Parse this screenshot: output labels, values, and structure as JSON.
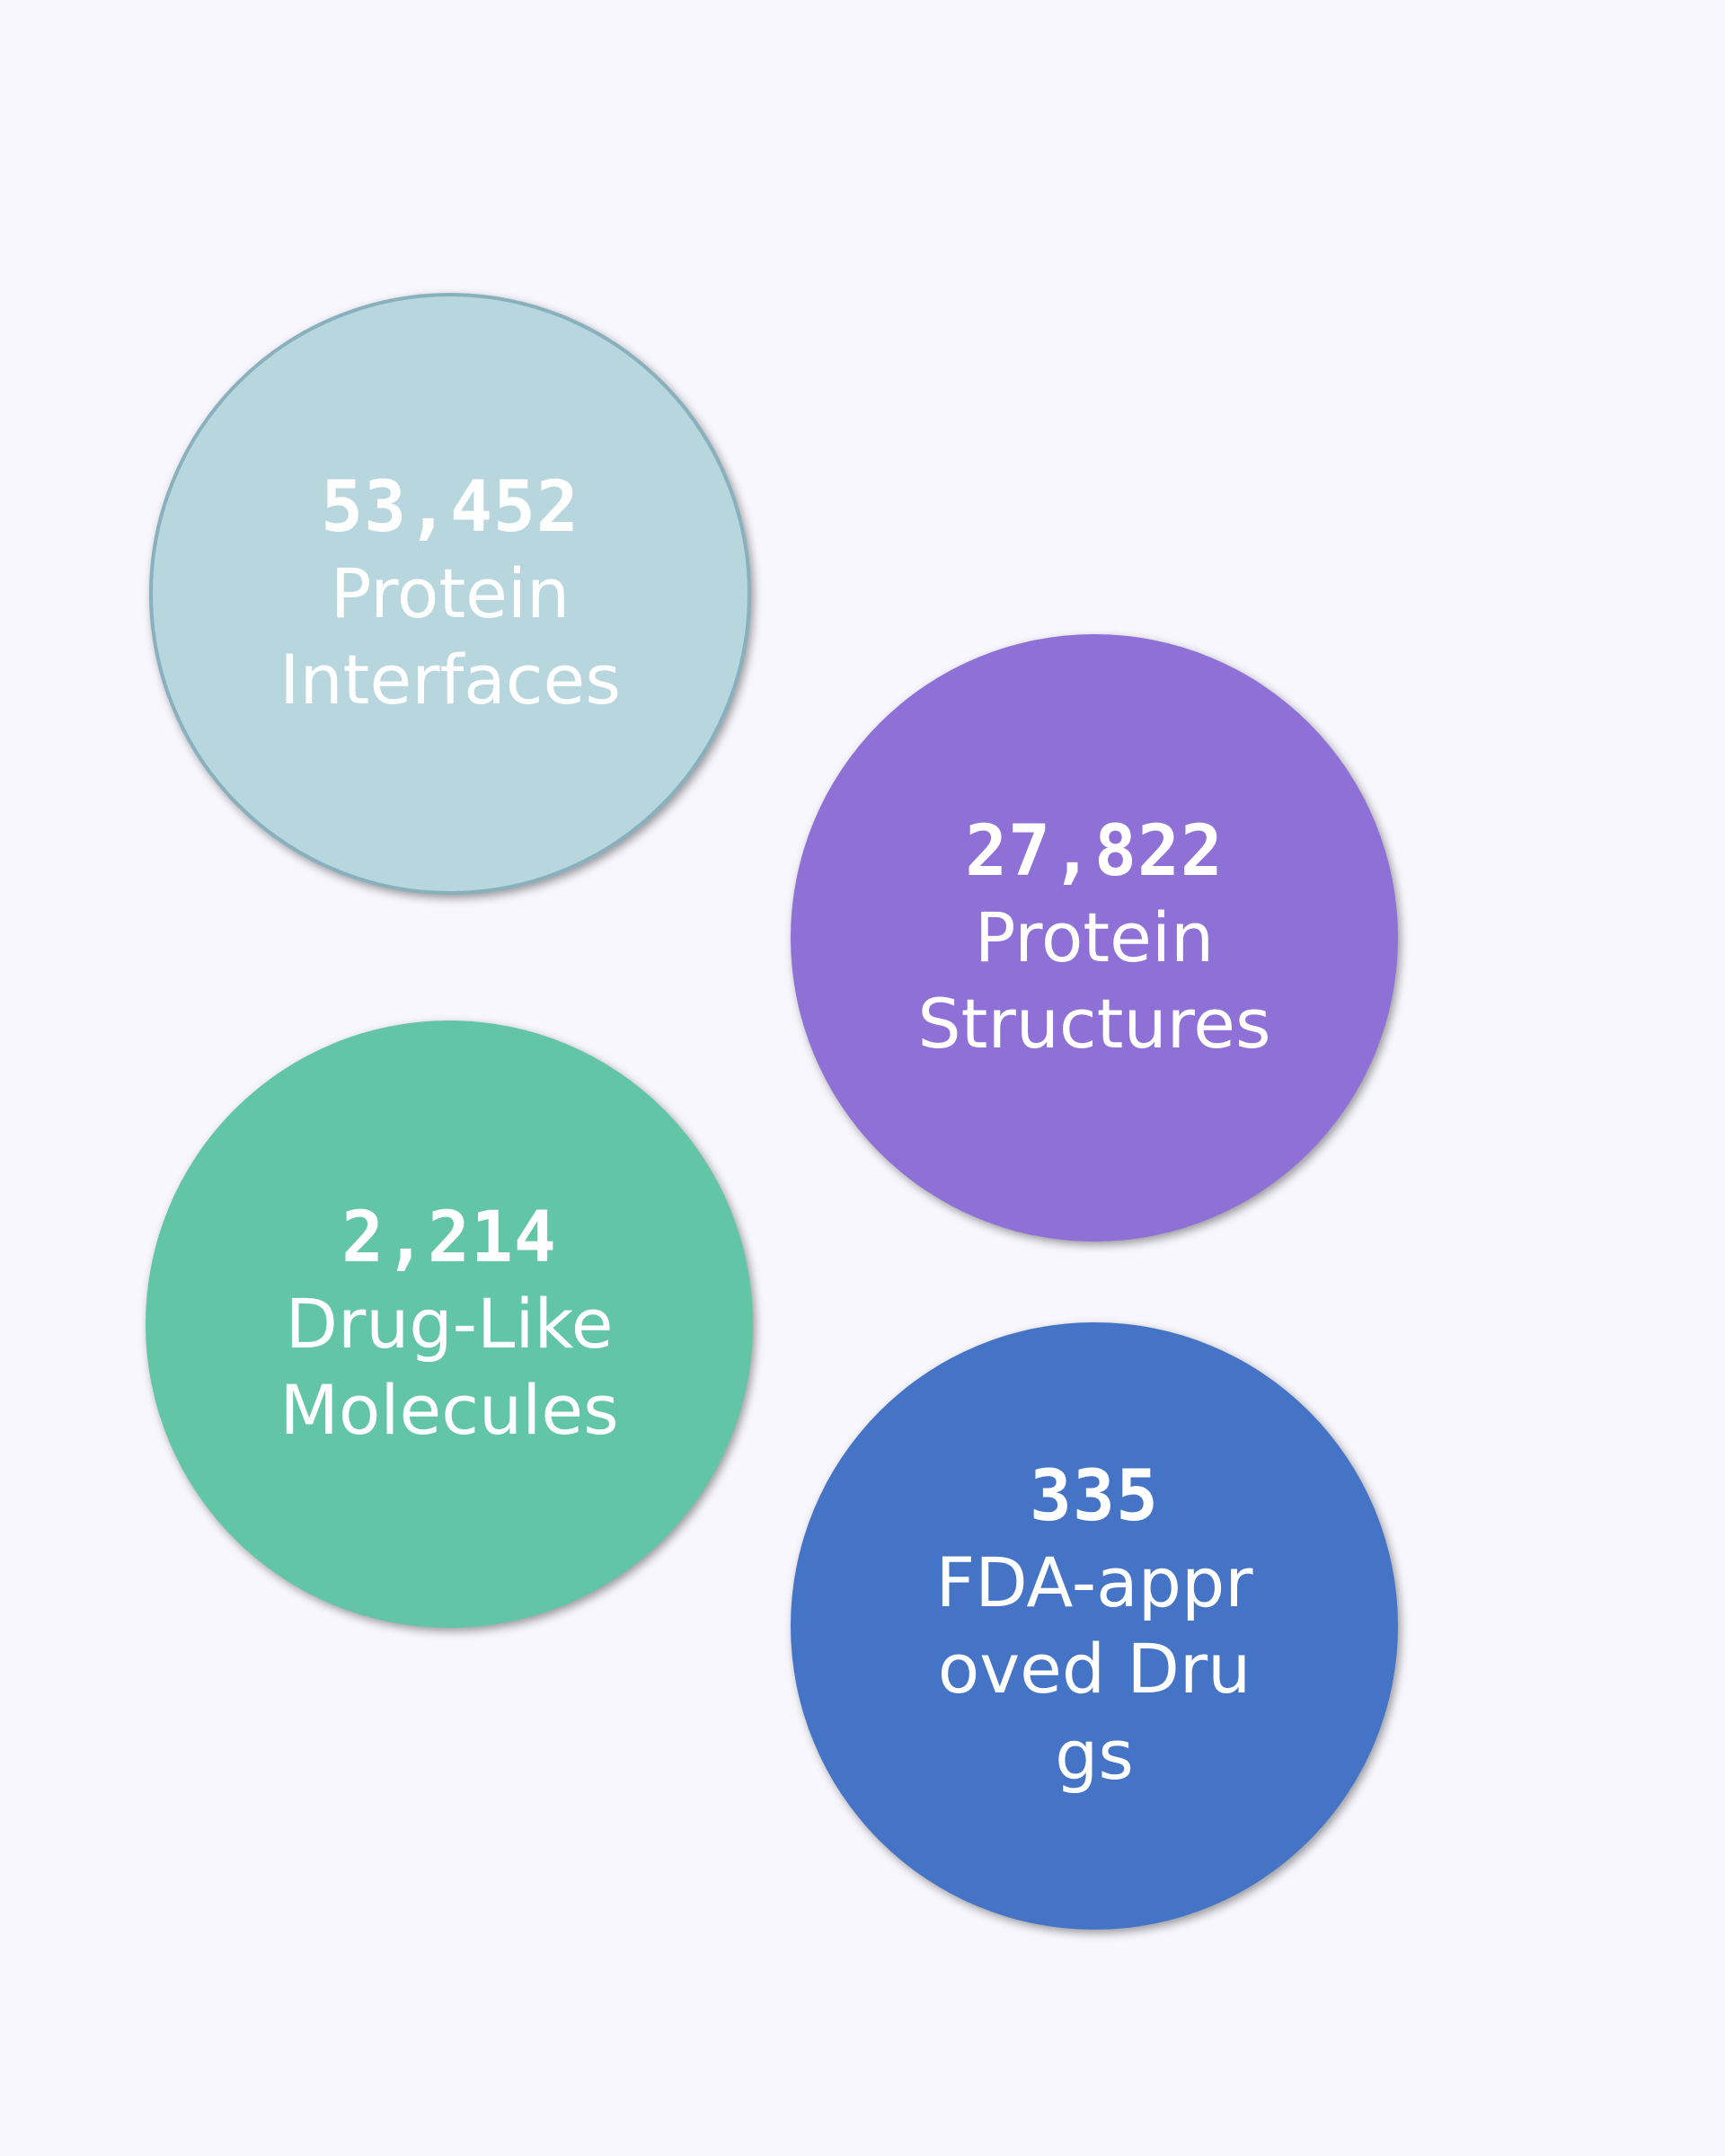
{
  "stats": [
    {
      "value": "53,452",
      "label": "Protein Interfaces",
      "color": "#b8d6de"
    },
    {
      "value": "27,822",
      "label": "Protein Structures",
      "color": "#8e70d6"
    },
    {
      "value": "2,214",
      "label": "Drug-Like Molecules",
      "color": "#62c6a6"
    },
    {
      "value": "335",
      "label": "FDA-approved Drugs",
      "color": "#4574c6"
    }
  ],
  "background_color": "#f7f7fd"
}
